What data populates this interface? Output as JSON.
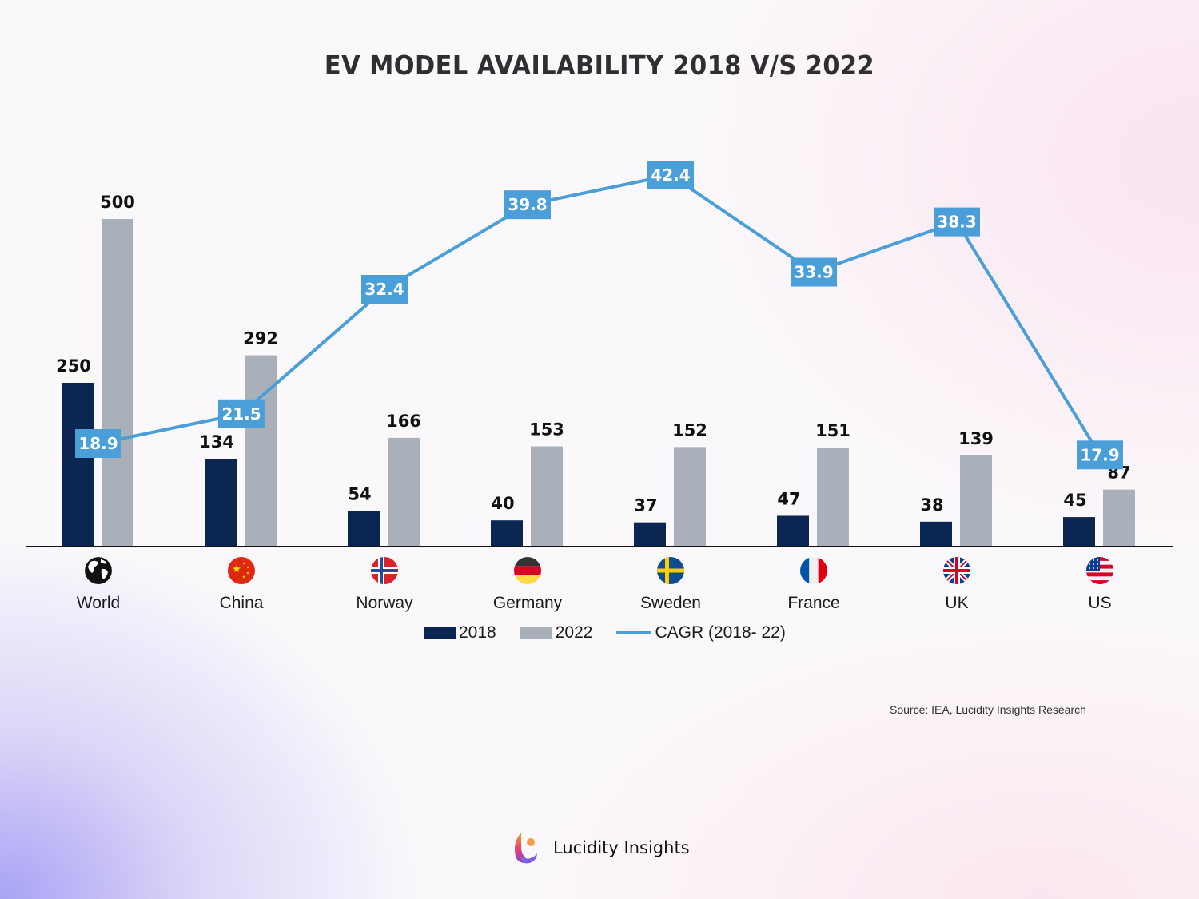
{
  "chart_data": {
    "type": "bar",
    "title": "EV MODEL AVAILABILITY 2018 V/S 2022",
    "categories": [
      "World",
      "China",
      "Norway",
      "Germany",
      "Sweden",
      "France",
      "UK",
      "US"
    ],
    "category_icons": [
      "globe-icon",
      "china-flag-icon",
      "norway-flag-icon",
      "germany-flag-icon",
      "sweden-flag-icon",
      "france-flag-icon",
      "uk-flag-icon",
      "us-flag-icon"
    ],
    "series": [
      {
        "name": "2018",
        "type": "bar",
        "color": "#0b2650",
        "values": [
          250,
          134,
          54,
          40,
          37,
          47,
          38,
          45
        ]
      },
      {
        "name": "2022",
        "type": "bar",
        "color": "#a9b0ba",
        "values": [
          500,
          292,
          166,
          153,
          152,
          151,
          139,
          87
        ]
      },
      {
        "name": "CAGR (2018- 22)",
        "type": "line",
        "color": "#4a9fd8",
        "values": [
          18.9,
          21.5,
          32.4,
          39.8,
          42.4,
          33.9,
          38.3,
          17.9
        ]
      }
    ],
    "xlabel": "",
    "ylabel": "",
    "grid": false,
    "legend_position": "bottom-center"
  },
  "legend": {
    "items": [
      "2018",
      "2022",
      "CAGR (2018- 22)"
    ]
  },
  "source": "Source: IEA, Lucidity Insights Research",
  "brand": {
    "name": "Lucidity Insights"
  }
}
